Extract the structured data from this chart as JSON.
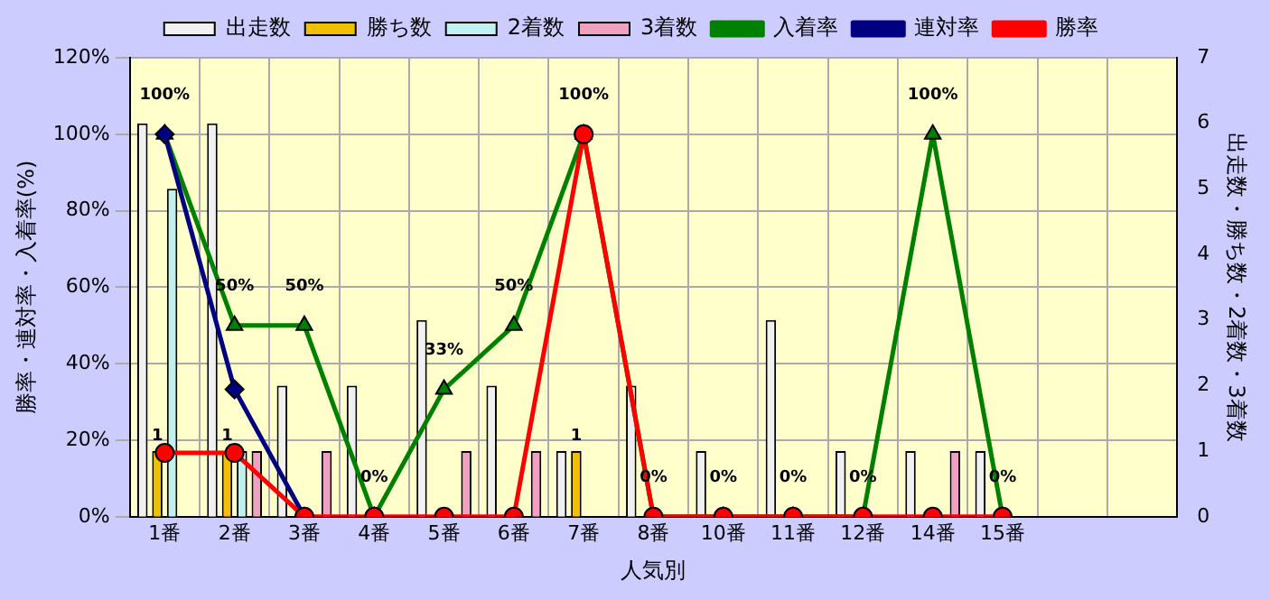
{
  "chart_data": {
    "type": "bar",
    "xlabel": "人気別",
    "ylabel": "勝率・連対率・入着率(%)",
    "y2label": "出走数・勝ち数・2着数・3着数",
    "categories": [
      "1番",
      "2番",
      "3番",
      "4番",
      "5番",
      "6番",
      "7番",
      "8番",
      "10番",
      "11番",
      "12番",
      "14番",
      "15番",
      null,
      null
    ],
    "series": [
      {
        "name": "出走数",
        "axis": "y2",
        "color": "#f0f0f0",
        "values": [
          6,
          6,
          2,
          2,
          3,
          2,
          1,
          2,
          1,
          3,
          1,
          1,
          1,
          null,
          null
        ]
      },
      {
        "name": "勝ち数",
        "axis": "y2",
        "color": "#f0c000",
        "values": [
          1,
          1,
          0,
          0,
          0,
          0,
          1,
          0,
          0,
          0,
          0,
          0,
          0,
          null,
          null
        ],
        "value_labels": [
          "1",
          "1",
          null,
          null,
          null,
          null,
          "1",
          null,
          null,
          null,
          null,
          null,
          null,
          null,
          null
        ]
      },
      {
        "name": "2着数",
        "axis": "y2",
        "color": "#c0f0f0",
        "values": [
          5,
          1,
          0,
          0,
          0,
          0,
          0,
          0,
          0,
          0,
          0,
          0,
          0,
          null,
          null
        ]
      },
      {
        "name": "3着数",
        "axis": "y2",
        "color": "#f0a0c0",
        "values": [
          0,
          1,
          1,
          0,
          1,
          1,
          0,
          0,
          0,
          0,
          0,
          1,
          0,
          null,
          null
        ]
      },
      {
        "name": "入着率",
        "type": "line",
        "axis": "y",
        "color": "#008000",
        "marker": "triangle",
        "values": [
          100,
          50,
          50,
          0,
          33.3,
          50,
          100,
          0,
          0,
          0,
          0,
          100,
          0,
          null,
          null
        ],
        "value_labels": [
          "100%",
          "50%",
          "50%",
          "0%",
          "33%",
          "50%",
          "100%",
          "0%",
          "0%",
          "0%",
          "0%",
          "100%",
          "0%",
          null,
          null
        ]
      },
      {
        "name": "連対率",
        "type": "line",
        "axis": "y",
        "color": "#000080",
        "marker": "diamond",
        "values": [
          100,
          33.3,
          0,
          null,
          null,
          null,
          null,
          null,
          null,
          null,
          null,
          null,
          null,
          null,
          null
        ]
      },
      {
        "name": "勝率",
        "type": "line",
        "axis": "y",
        "color": "#ff0000",
        "marker": "circle",
        "values": [
          16.7,
          16.7,
          0,
          0,
          0,
          0,
          100,
          0,
          0,
          0,
          0,
          0,
          0,
          null,
          null
        ]
      }
    ],
    "ylim": [
      0,
      120
    ],
    "yticks": [
      {
        "value": 0,
        "label": "0%"
      },
      {
        "value": 20,
        "label": "20%"
      },
      {
        "value": 40,
        "label": "40%"
      },
      {
        "value": 60,
        "label": "60%"
      },
      {
        "value": 80,
        "label": "80%"
      },
      {
        "value": 100,
        "label": "100%"
      },
      {
        "value": 120,
        "label": "120%"
      }
    ],
    "y2lim": [
      0,
      7
    ],
    "y2ticks": [
      0,
      1,
      2,
      3,
      4,
      5,
      6,
      7
    ],
    "grid": true,
    "legend": "top"
  }
}
